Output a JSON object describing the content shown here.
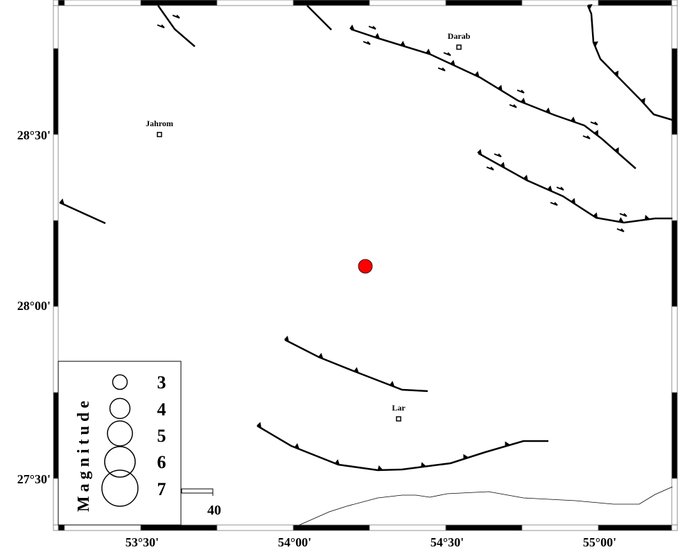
{
  "map": {
    "lon_labels": [
      "53°30'",
      "54°00'",
      "54°30'",
      "55°00'"
    ],
    "lat_labels": [
      "28°30'",
      "28°00'",
      "27°30'"
    ],
    "cities": [
      {
        "name": "Jahrom",
        "lon": 53.56,
        "lat": 28.5
      },
      {
        "name": "Darab",
        "lon": 54.55,
        "lat": 28.75
      },
      {
        "name": "Lar",
        "lon": 54.33,
        "lat": 27.67
      }
    ],
    "epicenter": {
      "lon": 54.23,
      "lat": 28.12,
      "color": "#ff0000"
    },
    "scale_bar_label": "40"
  },
  "legend": {
    "title": "Magnitude",
    "magnitudes": [
      "3",
      "4",
      "5",
      "6",
      "7"
    ]
  }
}
